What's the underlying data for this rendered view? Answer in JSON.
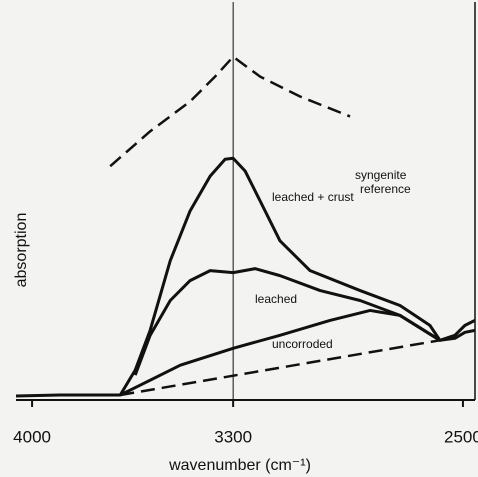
{
  "chart_data": {
    "type": "line",
    "xlabel": "wavenumber (cm⁻¹)",
    "ylabel": "absorption",
    "xlim": [
      4056,
      2458
    ],
    "ylim": [
      0,
      100
    ],
    "xticks": [
      4000,
      3300,
      2500
    ],
    "vlines": [
      3300
    ],
    "annotations": [
      "syngenite",
      "reference"
    ],
    "color": "#111111",
    "series": [
      {
        "dashed": true,
        "x": [
          3728,
          3589,
          3450,
          3363,
          3300,
          3206,
          3067,
          2893
        ],
        "values": [
          58.75,
          67.5,
          75,
          81.25,
          86.25,
          81.25,
          76.25,
          71.25
        ]
      },
      {
        "name": "leached + crust",
        "x": [
          4056,
          3903,
          3693,
          3641,
          3589,
          3519,
          3450,
          3380,
          3328,
          3300,
          3258,
          3206,
          3137,
          3032,
          2858,
          2719,
          2615,
          2580,
          2528,
          2493,
          2458
        ],
        "values": [
          1,
          1.25,
          1.25,
          7.5,
          17.5,
          35,
          47.5,
          56.25,
          60.5,
          60.75,
          57.5,
          50,
          40,
          32.5,
          27.5,
          23.75,
          18.75,
          15,
          16.25,
          18.75,
          20
        ]
      },
      {
        "name": "leached",
        "x": [
          3641,
          3589,
          3519,
          3450,
          3380,
          3300,
          3223,
          3137,
          2997,
          2858,
          2719,
          2580
        ],
        "values": [
          6.25,
          16.25,
          25,
          30,
          32.5,
          32,
          33,
          31.25,
          27.5,
          25,
          21.25,
          15
        ]
      },
      {
        "name": "uncorroded",
        "x": [
          3693,
          3623,
          3484,
          3300,
          3137,
          2963,
          2823,
          2719,
          2580,
          2528,
          2493,
          2458
        ],
        "values": [
          1.25,
          3.75,
          8.75,
          13,
          16.25,
          20,
          22.5,
          21.25,
          15,
          15.5,
          17,
          17.5
        ]
      },
      {
        "dashed": true,
        "x": [
          3693,
          2580
        ],
        "values": [
          1.25,
          15
        ]
      }
    ]
  }
}
